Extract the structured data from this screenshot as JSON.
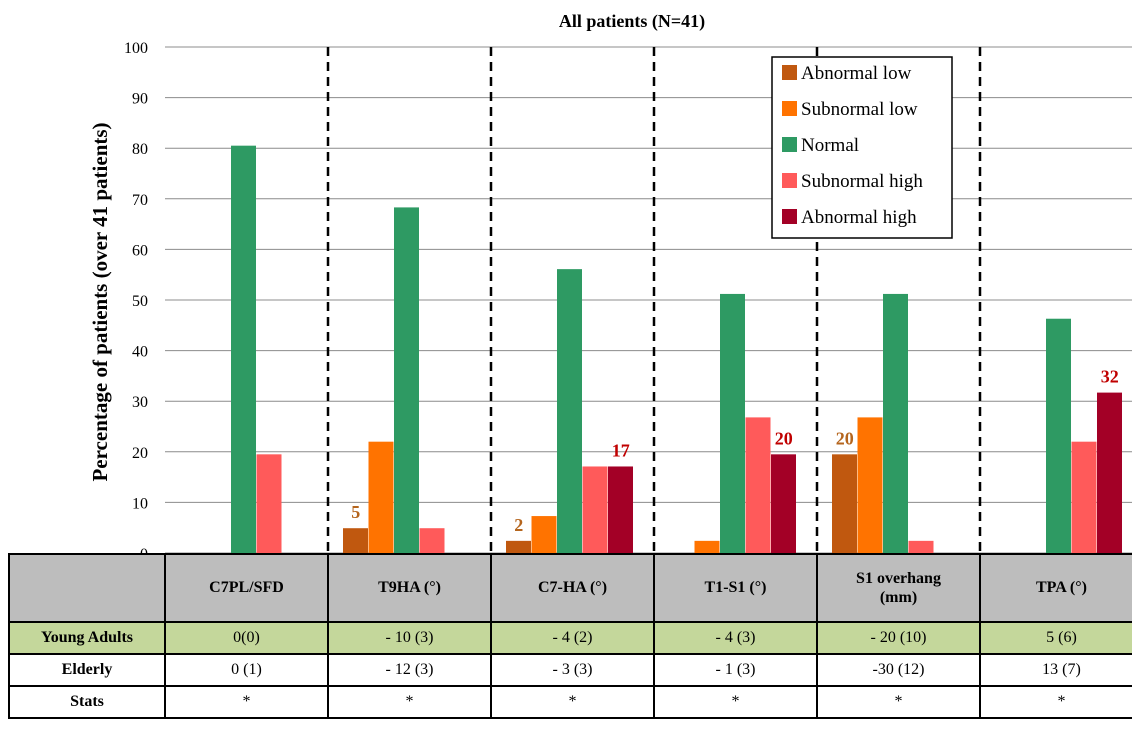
{
  "chart_data": {
    "type": "bar",
    "title": "All patients (N=41)",
    "ylabel": "Percentage of patients (over 41 patients)",
    "ylim": [
      0,
      100
    ],
    "yticks": [
      0,
      10,
      20,
      30,
      40,
      50,
      60,
      70,
      80,
      90,
      100
    ],
    "grid": true,
    "legend_position": "top-right",
    "categories": [
      "C7PL/SFD",
      "T9HA (°)",
      "C7-HA (°)",
      "T1-S1 (°)",
      "S1 overhang (mm)",
      "TPA (°)"
    ],
    "series": [
      {
        "name": "Abnormal low",
        "color": "#c0580f",
        "values": [
          0,
          4.9,
          2.4,
          0,
          19.5,
          0
        ]
      },
      {
        "name": "Subnormal low",
        "color": "#ff7300",
        "values": [
          0,
          22,
          7.3,
          2.4,
          26.8,
          0
        ]
      },
      {
        "name": "Normal",
        "color": "#2e9a63",
        "values": [
          80.5,
          68.3,
          56.1,
          51.2,
          51.2,
          46.3
        ]
      },
      {
        "name": "Subnormal high",
        "color": "#ff5a5a",
        "values": [
          19.5,
          4.9,
          17.1,
          26.8,
          2.4,
          22
        ]
      },
      {
        "name": "Abnormal high",
        "color": "#a30026",
        "values": [
          0,
          0,
          17.1,
          19.5,
          0,
          31.7
        ]
      }
    ],
    "data_labels": [
      {
        "category": 1,
        "series": 0,
        "text": "5",
        "color": "#b5651d"
      },
      {
        "category": 2,
        "series": 0,
        "text": "2",
        "color": "#b5651d"
      },
      {
        "category": 2,
        "series": 4,
        "text": "17",
        "color": "#c00000"
      },
      {
        "category": 3,
        "series": 4,
        "text": "20",
        "color": "#c00000"
      },
      {
        "category": 4,
        "series": 0,
        "text": "20",
        "color": "#b5651d"
      },
      {
        "category": 5,
        "series": 4,
        "text": "32",
        "color": "#c00000"
      }
    ]
  },
  "table": {
    "headers": [
      "",
      "C7PL/SFD",
      "T9HA (°)",
      "C7-HA (°)",
      "T1-S1 (°)",
      "S1 overhang\n(mm)",
      "TPA (°)"
    ],
    "young": {
      "label": "Young Adults",
      "values": [
        "0(0)",
        "- 10 (3)",
        "- 4 (2)",
        "- 4 (3)",
        "- 20 (10)",
        "5 (6)"
      ]
    },
    "elderly": {
      "label": "Elderly",
      "values": [
        "0 (1)",
        "- 12 (3)",
        "- 3 (3)",
        "- 1 (3)",
        "-30 (12)",
        "13 (7)"
      ]
    },
    "stats": {
      "label": "Stats",
      "values": [
        "*",
        "*",
        "*",
        "*",
        "*",
        "*"
      ]
    }
  }
}
